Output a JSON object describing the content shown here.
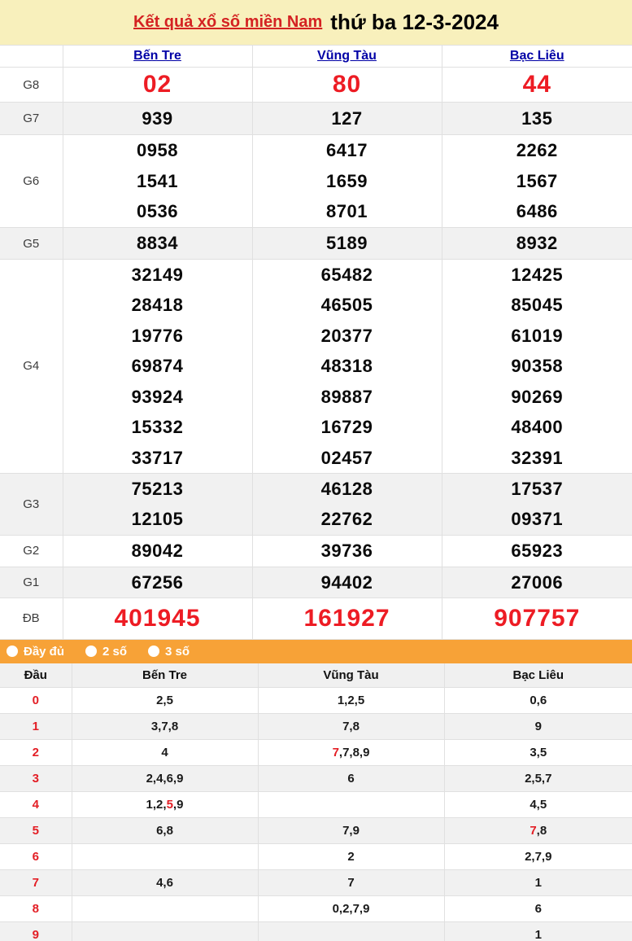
{
  "title": {
    "link": "Kết quả xổ số miền Nam",
    "date_text": "thứ ba 12-3-2024"
  },
  "colors": {
    "accent_red": "#ed1c24",
    "title_link_red": "#d42222",
    "link_blue": "#0000a6",
    "header_yellow": "#f8f0bc",
    "filter_orange": "#f7a237",
    "stripe_gray": "#f1f1f1"
  },
  "results_table": {
    "provinces": [
      "Bến Tre",
      "Vũng Tàu",
      "Bạc Liêu"
    ],
    "rows": [
      {
        "label": "G8",
        "big": true,
        "values": [
          [
            "02"
          ],
          [
            "80"
          ],
          [
            "44"
          ]
        ]
      },
      {
        "label": "G7",
        "big": false,
        "values": [
          [
            "939"
          ],
          [
            "127"
          ],
          [
            "135"
          ]
        ]
      },
      {
        "label": "G6",
        "big": false,
        "values": [
          [
            "0958",
            "1541",
            "0536"
          ],
          [
            "6417",
            "1659",
            "8701"
          ],
          [
            "2262",
            "1567",
            "6486"
          ]
        ]
      },
      {
        "label": "G5",
        "big": false,
        "values": [
          [
            "8834"
          ],
          [
            "5189"
          ],
          [
            "8932"
          ]
        ]
      },
      {
        "label": "G4",
        "big": false,
        "values": [
          [
            "32149",
            "28418",
            "19776",
            "69874",
            "93924",
            "15332",
            "33717"
          ],
          [
            "65482",
            "46505",
            "20377",
            "48318",
            "89887",
            "16729",
            "02457"
          ],
          [
            "12425",
            "85045",
            "61019",
            "90358",
            "90269",
            "48400",
            "32391"
          ]
        ]
      },
      {
        "label": "G3",
        "big": false,
        "values": [
          [
            "75213",
            "12105"
          ],
          [
            "46128",
            "22762"
          ],
          [
            "17537",
            "09371"
          ]
        ]
      },
      {
        "label": "G2",
        "big": false,
        "values": [
          [
            "89042"
          ],
          [
            "39736"
          ],
          [
            "65923"
          ]
        ]
      },
      {
        "label": "G1",
        "big": false,
        "values": [
          [
            "67256"
          ],
          [
            "94402"
          ],
          [
            "27006"
          ]
        ]
      },
      {
        "label": "ĐB",
        "big": true,
        "values": [
          [
            "401945"
          ],
          [
            "161927"
          ],
          [
            "907757"
          ]
        ]
      }
    ]
  },
  "filter_bar": {
    "options": [
      {
        "label": "Đầy đủ",
        "icon": "radio-icon"
      },
      {
        "label": "2 số",
        "icon": "radio-icon"
      },
      {
        "label": "3 số",
        "icon": "radio-icon"
      }
    ]
  },
  "tails_table": {
    "headers": [
      "Đầu",
      "Bến Tre",
      "Vũng Tàu",
      "Bạc Liêu"
    ],
    "rows": [
      {
        "digit": "0",
        "cells": [
          [
            {
              "t": "2,5"
            }
          ],
          [
            {
              "t": "1,2,5"
            }
          ],
          [
            {
              "t": "0,6"
            }
          ]
        ]
      },
      {
        "digit": "1",
        "cells": [
          [
            {
              "t": "3,7,8"
            }
          ],
          [
            {
              "t": "7,8"
            }
          ],
          [
            {
              "t": "9"
            }
          ]
        ]
      },
      {
        "digit": "2",
        "cells": [
          [
            {
              "t": "4"
            }
          ],
          [
            {
              "t": "7",
              "red": true
            },
            {
              "t": ",7,8,9"
            }
          ],
          [
            {
              "t": "3,5"
            }
          ]
        ]
      },
      {
        "digit": "3",
        "cells": [
          [
            {
              "t": "2,4,6,9"
            }
          ],
          [
            {
              "t": "6"
            }
          ],
          [
            {
              "t": "2,5,7"
            }
          ]
        ]
      },
      {
        "digit": "4",
        "cells": [
          [
            {
              "t": "1,2,"
            },
            {
              "t": "5",
              "red": true
            },
            {
              "t": ",9"
            }
          ],
          [],
          [
            {
              "t": "4,5"
            }
          ]
        ]
      },
      {
        "digit": "5",
        "cells": [
          [
            {
              "t": "6,8"
            }
          ],
          [
            {
              "t": "7,9"
            }
          ],
          [
            {
              "t": "7",
              "red": true
            },
            {
              "t": ",8"
            }
          ]
        ]
      },
      {
        "digit": "6",
        "cells": [
          [],
          [
            {
              "t": "2"
            }
          ],
          [
            {
              "t": "2,7,9"
            }
          ]
        ]
      },
      {
        "digit": "7",
        "cells": [
          [
            {
              "t": "4,6"
            }
          ],
          [
            {
              "t": "7"
            }
          ],
          [
            {
              "t": "1"
            }
          ]
        ]
      },
      {
        "digit": "8",
        "cells": [
          [],
          [
            {
              "t": "0,2,7,9"
            }
          ],
          [
            {
              "t": "6"
            }
          ]
        ]
      },
      {
        "digit": "9",
        "cells": [
          [],
          [],
          [
            {
              "t": "1"
            }
          ]
        ]
      }
    ]
  }
}
